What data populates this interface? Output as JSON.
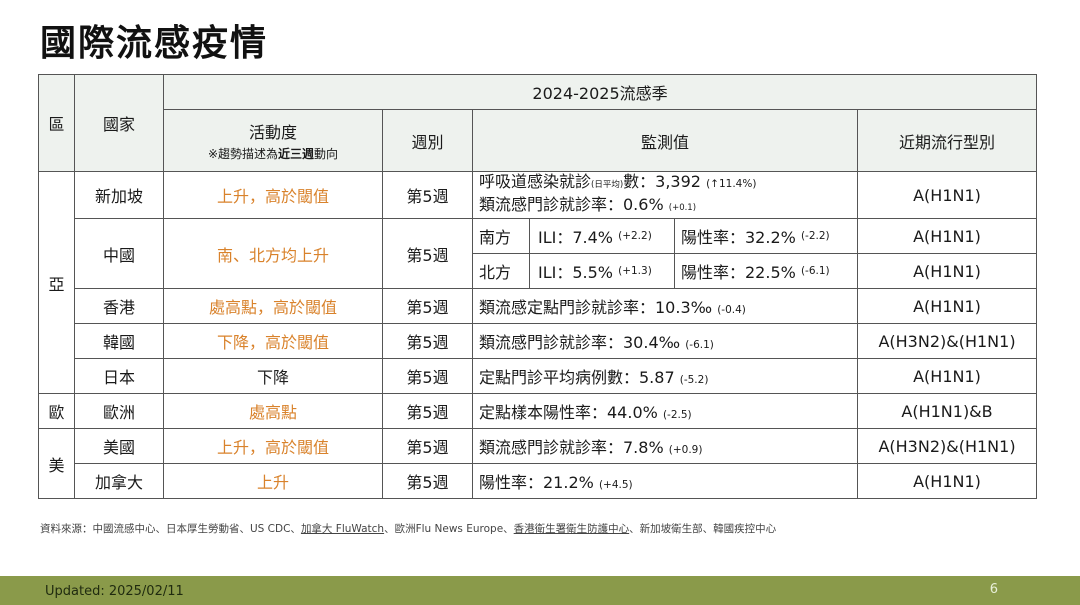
{
  "title": "國際流感疫情",
  "header": {
    "region": "區",
    "country": "國家",
    "season": "2024-2025流感季",
    "activity": "活動度",
    "activity_note_pre": "※趨勢描述為",
    "activity_note_bold": "近三週",
    "activity_note_post": "動向",
    "week": "週別",
    "monitoring": "監測值",
    "strain": "近期流行型別"
  },
  "regions": {
    "asia": "亞",
    "europe": "歐",
    "america": "美"
  },
  "rows": {
    "singapore": {
      "country": "新加坡",
      "activity": "上升，高於閾值",
      "week": "第5週",
      "line1_a": "呼吸道感染就診",
      "line1_sub": "(日平均)",
      "line1_b": "數：3,392",
      "line1_delta": "(↑11.4%)",
      "line2": "類流感門診就診率：0.6%",
      "line2_delta": "(+0.1)",
      "strain": "A(H1N1)"
    },
    "china": {
      "country": "中國",
      "activity": "南、北方均上升",
      "week": "第5週",
      "south": "南方",
      "south_ili": "ILI：7.4%",
      "south_ili_delta": "(+2.2)",
      "south_pos": "陽性率：32.2%",
      "south_pos_delta": "(-2.2)",
      "south_strain": "A(H1N1)",
      "north": "北方",
      "north_ili": "ILI：5.5%",
      "north_ili_delta": "(+1.3)",
      "north_pos": "陽性率：22.5%",
      "north_pos_delta": "(-6.1)",
      "north_strain": "A(H1N1)"
    },
    "hongkong": {
      "country": "香港",
      "activity": "處高點，高於閾值",
      "week": "第5週",
      "value": "類流感定點門診就診率：10.3‰",
      "delta": "(-0.4)",
      "strain": "A(H1N1)"
    },
    "korea": {
      "country": "韓國",
      "activity": "下降，高於閾值",
      "week": "第5週",
      "value": "類流感門診就診率：30.4‰",
      "delta": "(-6.1)",
      "strain": "A(H3N2)&(H1N1)"
    },
    "japan": {
      "country": "日本",
      "activity": "下降",
      "week": "第5週",
      "value": "定點門診平均病例數：5.87",
      "delta": "(-5.2)",
      "strain": "A(H1N1)"
    },
    "europe": {
      "country": "歐洲",
      "activity": "處高點",
      "week": "第5週",
      "value": "定點樣本陽性率：44.0%",
      "delta": "(-2.5)",
      "strain": "A(H1N1)&B"
    },
    "usa": {
      "country": "美國",
      "activity": "上升，高於閾值",
      "week": "第5週",
      "value": "類流感門診就診率：7.8%",
      "delta": "(+0.9)",
      "strain": "A(H3N2)&(H1N1)"
    },
    "canada": {
      "country": "加拿大",
      "activity": "上升",
      "week": "第5週",
      "value": "陽性率：21.2%",
      "delta": "(+4.5)",
      "strain": "A(H1N1)"
    }
  },
  "source": {
    "prefix": "資料來源：中國流感中心、日本厚生勞動省、US CDC、",
    "fluwatch": "加拿大 FluWatch",
    "sep1": "、歐洲Flu News Europe、",
    "hk": "香港衛生署衛生防護中心",
    "suffix": "、新加坡衛生部、韓國疾控中心"
  },
  "footer": {
    "updated": "Updated: 2025/02/11",
    "page": "6"
  },
  "colors": {
    "activity_accent": "#d9822b",
    "footer_bg": "#8a9a4a",
    "header_bg": "#eef2ee"
  }
}
